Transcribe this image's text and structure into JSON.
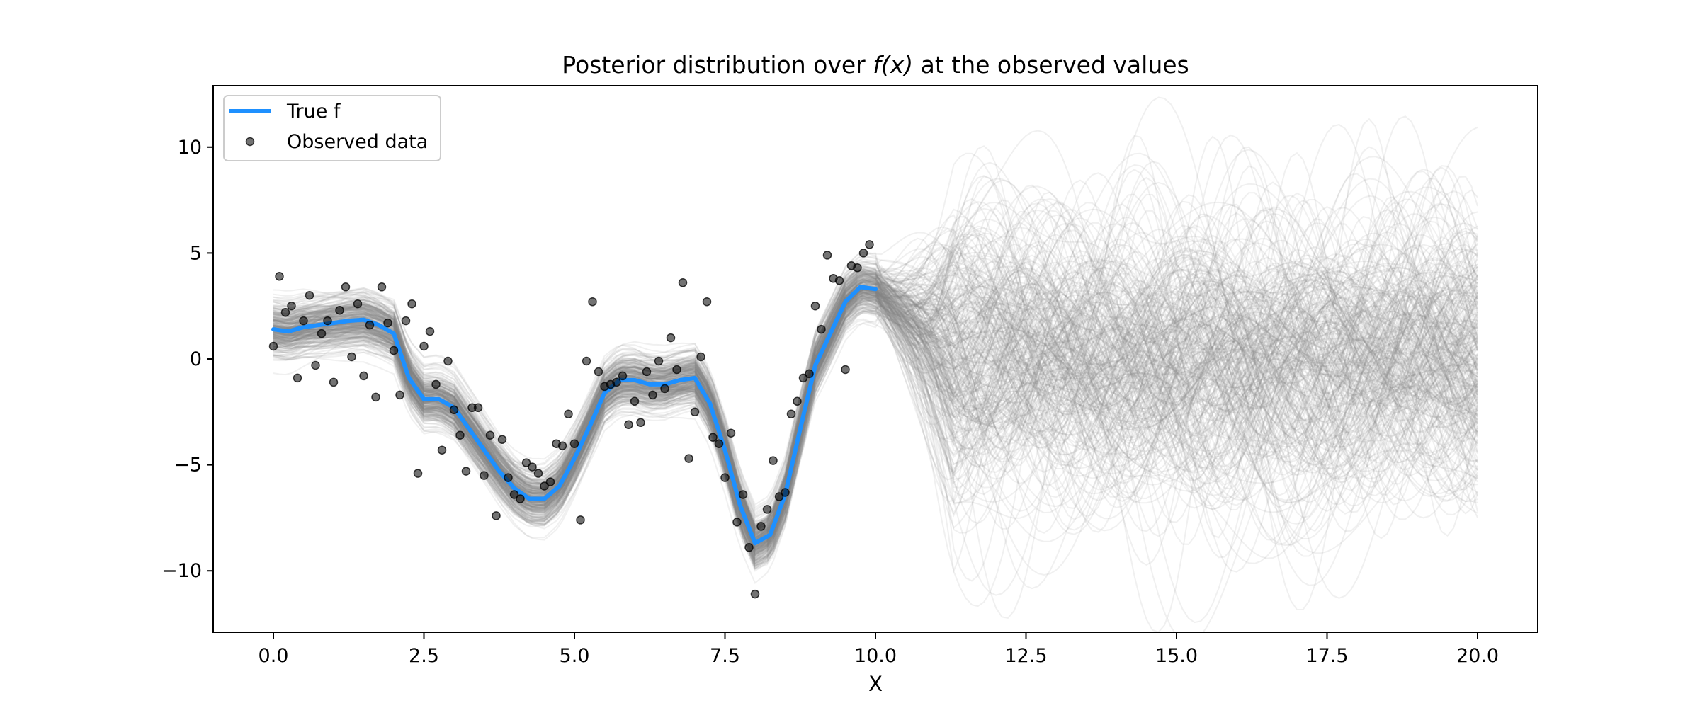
{
  "chart_data": {
    "type": "line",
    "title_prefix": "Posterior distribution over ",
    "title_math": "f(x)",
    "title_suffix": " at the observed values",
    "xlabel": "X",
    "ylabel": "",
    "xlim": [
      -1.0,
      21.0
    ],
    "ylim": [
      -12.9,
      12.9
    ],
    "xticks": [
      0.0,
      2.5,
      5.0,
      7.5,
      10.0,
      12.5,
      15.0,
      17.5,
      20.0
    ],
    "xtick_labels": [
      "0.0",
      "2.5",
      "5.0",
      "7.5",
      "10.0",
      "12.5",
      "15.0",
      "17.5",
      "20.0"
    ],
    "yticks": [
      10,
      5,
      0,
      -5,
      -10
    ],
    "ytick_labels": [
      "10",
      "5",
      "0",
      "−5",
      "−10"
    ],
    "legend_position": "top-left",
    "legend": [
      {
        "label": "True f",
        "kind": "line"
      },
      {
        "label": "Observed data",
        "kind": "marker"
      }
    ],
    "colors": {
      "true_f": "#1e90ff",
      "samples": "#808080",
      "points": "#000000"
    },
    "series": [
      {
        "name": "True f",
        "x": [
          0.0,
          0.25,
          0.5,
          0.75,
          1.0,
          1.25,
          1.5,
          1.75,
          2.0,
          2.25,
          2.5,
          2.75,
          3.0,
          3.25,
          3.5,
          3.75,
          4.0,
          4.25,
          4.5,
          4.75,
          5.0,
          5.25,
          5.5,
          5.75,
          6.0,
          6.25,
          6.5,
          6.75,
          7.0,
          7.25,
          7.5,
          7.75,
          8.0,
          8.25,
          8.5,
          8.75,
          9.0,
          9.25,
          9.5,
          9.75,
          10.0
        ],
        "y": [
          1.4,
          1.3,
          1.5,
          1.6,
          1.7,
          1.8,
          1.85,
          1.6,
          1.2,
          -0.9,
          -1.9,
          -1.9,
          -2.3,
          -3.3,
          -4.3,
          -5.3,
          -6.1,
          -6.6,
          -6.6,
          -6.0,
          -4.7,
          -3.2,
          -1.6,
          -1.0,
          -1.0,
          -1.2,
          -1.2,
          -1.0,
          -0.9,
          -2.1,
          -4.3,
          -6.9,
          -8.7,
          -8.3,
          -6.4,
          -3.3,
          -0.3,
          1.2,
          2.7,
          3.4,
          3.3
        ]
      },
      {
        "name": "Observed data",
        "points": [
          [
            0.0,
            0.6
          ],
          [
            0.1,
            3.9
          ],
          [
            0.2,
            2.2
          ],
          [
            0.3,
            2.5
          ],
          [
            0.4,
            -0.9
          ],
          [
            0.5,
            1.8
          ],
          [
            0.6,
            3.0
          ],
          [
            0.7,
            -0.3
          ],
          [
            0.8,
            1.2
          ],
          [
            0.9,
            1.8
          ],
          [
            1.0,
            -1.1
          ],
          [
            1.1,
            2.3
          ],
          [
            1.2,
            3.4
          ],
          [
            1.3,
            0.1
          ],
          [
            1.4,
            2.6
          ],
          [
            1.5,
            -0.8
          ],
          [
            1.6,
            1.6
          ],
          [
            1.7,
            -1.8
          ],
          [
            1.8,
            3.4
          ],
          [
            1.9,
            1.7
          ],
          [
            2.0,
            0.4
          ],
          [
            2.1,
            -1.7
          ],
          [
            2.2,
            1.8
          ],
          [
            2.3,
            2.6
          ],
          [
            2.4,
            -5.4
          ],
          [
            2.5,
            0.6
          ],
          [
            2.6,
            1.3
          ],
          [
            2.7,
            -1.2
          ],
          [
            2.8,
            -4.3
          ],
          [
            2.9,
            -0.1
          ],
          [
            3.0,
            -2.4
          ],
          [
            3.1,
            -3.6
          ],
          [
            3.2,
            -5.3
          ],
          [
            3.3,
            -2.3
          ],
          [
            3.4,
            -2.3
          ],
          [
            3.5,
            -5.5
          ],
          [
            3.6,
            -3.6
          ],
          [
            3.7,
            -7.4
          ],
          [
            3.8,
            -3.8
          ],
          [
            3.9,
            -5.6
          ],
          [
            4.0,
            -6.4
          ],
          [
            4.1,
            -6.6
          ],
          [
            4.2,
            -4.9
          ],
          [
            4.3,
            -5.1
          ],
          [
            4.4,
            -5.4
          ],
          [
            4.5,
            -6.0
          ],
          [
            4.6,
            -5.8
          ],
          [
            4.7,
            -4.0
          ],
          [
            4.8,
            -4.1
          ],
          [
            4.9,
            -2.6
          ],
          [
            5.0,
            -4.0
          ],
          [
            5.1,
            -7.6
          ],
          [
            5.2,
            -0.1
          ],
          [
            5.3,
            2.7
          ],
          [
            5.4,
            -0.6
          ],
          [
            5.5,
            -1.3
          ],
          [
            5.6,
            -1.2
          ],
          [
            5.7,
            -1.1
          ],
          [
            5.8,
            -0.8
          ],
          [
            5.9,
            -3.1
          ],
          [
            6.0,
            -2.0
          ],
          [
            6.1,
            -3.0
          ],
          [
            6.2,
            -0.6
          ],
          [
            6.3,
            -1.7
          ],
          [
            6.4,
            -0.1
          ],
          [
            6.5,
            -1.4
          ],
          [
            6.6,
            1.0
          ],
          [
            6.7,
            -0.5
          ],
          [
            6.8,
            3.6
          ],
          [
            6.9,
            -4.7
          ],
          [
            7.0,
            -2.5
          ],
          [
            7.1,
            0.1
          ],
          [
            7.2,
            2.7
          ],
          [
            7.3,
            -3.7
          ],
          [
            7.4,
            -4.0
          ],
          [
            7.5,
            -5.6
          ],
          [
            7.6,
            -3.5
          ],
          [
            7.7,
            -7.7
          ],
          [
            7.8,
            -6.4
          ],
          [
            7.9,
            -8.9
          ],
          [
            8.0,
            -11.1
          ],
          [
            8.1,
            -7.9
          ],
          [
            8.2,
            -7.1
          ],
          [
            8.3,
            -4.8
          ],
          [
            8.4,
            -6.5
          ],
          [
            8.5,
            -6.3
          ],
          [
            8.6,
            -2.6
          ],
          [
            8.7,
            -2.0
          ],
          [
            8.8,
            -0.9
          ],
          [
            8.9,
            -0.7
          ],
          [
            9.0,
            2.5
          ],
          [
            9.1,
            1.4
          ],
          [
            9.2,
            4.9
          ],
          [
            9.3,
            3.8
          ],
          [
            9.4,
            3.7
          ],
          [
            9.5,
            -0.5
          ],
          [
            9.6,
            4.4
          ],
          [
            9.7,
            4.3
          ],
          [
            9.8,
            5.0
          ],
          [
            9.9,
            5.4
          ]
        ]
      }
    ]
  }
}
